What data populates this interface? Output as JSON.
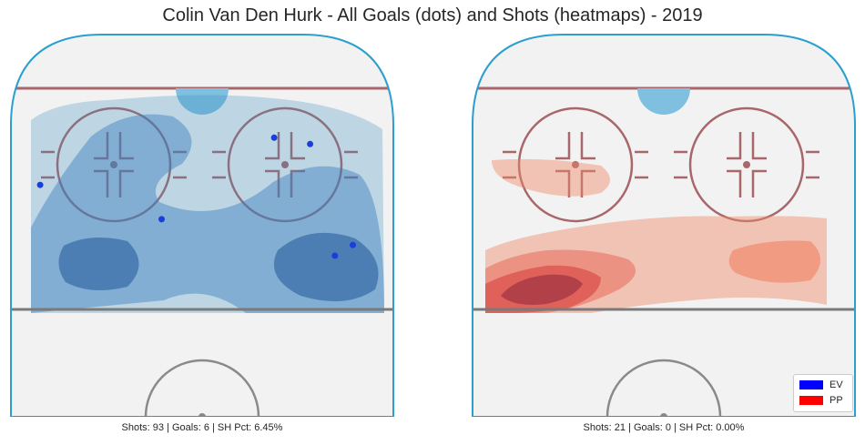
{
  "title": "Colin Van Den Hurk - All Goals (dots) and Shots (heatmaps) - 2019",
  "panels": [
    {
      "strength": "EV",
      "caption": "Shots: 93 | Goals: 6 | SH Pct: 6.45%",
      "heatmap_color": "#3a7fbf",
      "goal_dot_color": "#1a3fd8"
    },
    {
      "strength": "PP",
      "caption": "Shots: 21 | Goals: 0 | SH Pct: 0.00%",
      "heatmap_color": "#e8453c",
      "goal_dot_color": "#d81a1a"
    }
  ],
  "legend": {
    "items": [
      {
        "label": "EV",
        "color": "#0000ff"
      },
      {
        "label": "PP",
        "color": "#ff0000"
      }
    ],
    "placement": "lower-right"
  },
  "chart_data": [
    {
      "type": "heatmap",
      "panel": "EV",
      "title": "",
      "shots": 93,
      "goals": 6,
      "sh_pct": 6.45,
      "x_range_ft": [
        -42.5,
        42.5
      ],
      "y_range_ft": [
        0,
        89
      ],
      "goal_locations_ft": [
        {
          "x": 16,
          "y": 65
        },
        {
          "x": 24,
          "y": 63.5
        },
        {
          "x": -36,
          "y": 54
        },
        {
          "x": -9,
          "y": 46
        },
        {
          "x": 33.5,
          "y": 40
        },
        {
          "x": 29.5,
          "y": 37.5
        }
      ]
    },
    {
      "type": "heatmap",
      "panel": "PP",
      "title": "",
      "shots": 21,
      "goals": 0,
      "sh_pct": 0.0,
      "x_range_ft": [
        -42.5,
        42.5
      ],
      "y_range_ft": [
        0,
        89
      ],
      "goal_locations_ft": []
    }
  ]
}
